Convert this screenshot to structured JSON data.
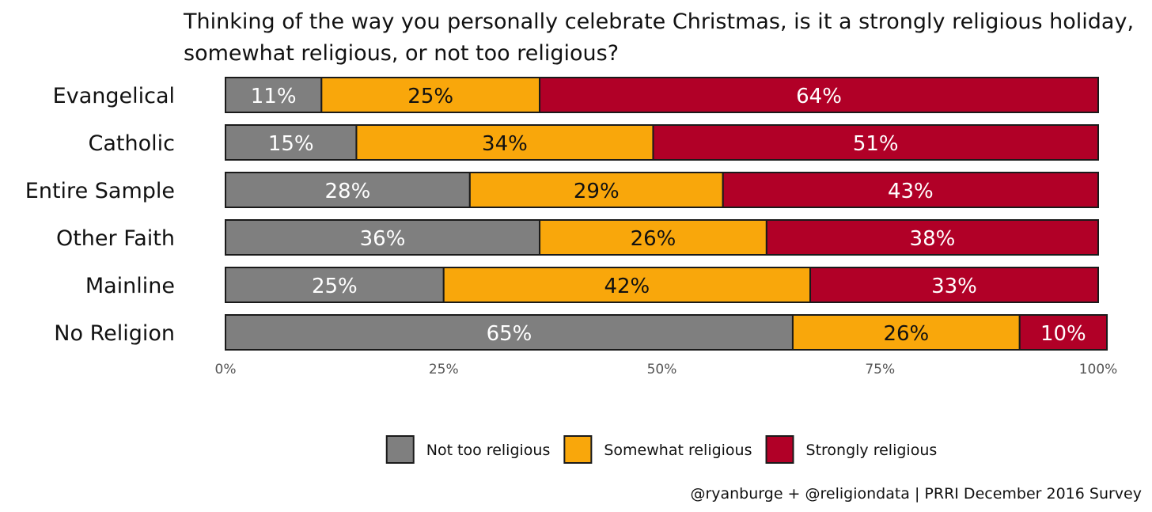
{
  "chart_data": {
    "type": "bar",
    "orientation": "horizontal",
    "stacked": true,
    "title": "Thinking of the way you personally celebrate Christmas, is it a strongly religious holiday, somewhat religious, or not too religious?",
    "title_lines": [
      "Thinking of the way you personally celebrate Christmas, is it a strongly religious holiday,",
      "somewhat religious, or not too religious?"
    ],
    "categories": [
      "Evangelical",
      "Catholic",
      "Entire Sample",
      "Other Faith",
      "Mainline",
      "No Religion"
    ],
    "series": [
      {
        "name": "Not too religious",
        "color": "#7f7f7f",
        "label_color": "#ffffff",
        "values": [
          11,
          15,
          28,
          36,
          25,
          65
        ],
        "labels": [
          "11%",
          "15%",
          "28%",
          "36%",
          "25%",
          "65%"
        ]
      },
      {
        "name": "Somewhat religious",
        "color": "#f9a70b",
        "label_color": "#111111",
        "values": [
          25,
          34,
          29,
          26,
          42,
          26
        ],
        "labels": [
          "25%",
          "34%",
          "29%",
          "26%",
          "42%",
          "26%"
        ]
      },
      {
        "name": "Strongly religious",
        "color": "#b10027",
        "label_color": "#ffffff",
        "values": [
          64,
          51,
          43,
          38,
          33,
          10
        ],
        "labels": [
          "64%",
          "51%",
          "43%",
          "38%",
          "33%",
          "10%"
        ]
      }
    ],
    "xlim": [
      0,
      100
    ],
    "x_ticks": [
      0,
      25,
      50,
      75,
      100
    ],
    "x_tick_labels": [
      "0%",
      "25%",
      "50%",
      "75%",
      "100%"
    ],
    "xlabel": "",
    "ylabel": "",
    "grid": false,
    "legend_position": "bottom",
    "caption": "@ryanburge + @religiondata | PRRI December 2016 Survey"
  }
}
